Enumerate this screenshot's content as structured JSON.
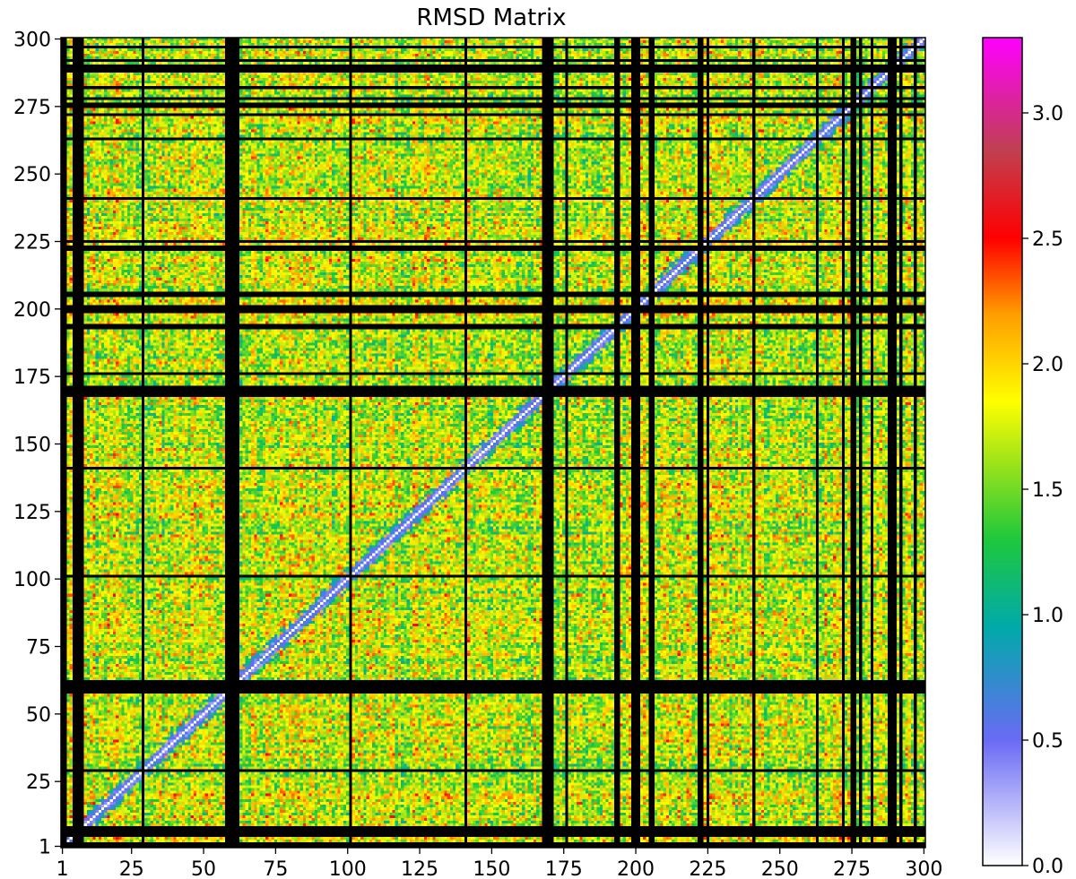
{
  "chart_data": {
    "type": "heatmap",
    "title": "RMSD Matrix",
    "xlabel": "",
    "ylabel": "",
    "x_range": [
      1,
      300
    ],
    "y_range": [
      1,
      300
    ],
    "x_ticks": [
      1,
      25,
      50,
      75,
      100,
      125,
      150,
      175,
      200,
      225,
      250,
      275,
      300
    ],
    "y_ticks": [
      1,
      25,
      50,
      75,
      100,
      125,
      150,
      175,
      200,
      225,
      250,
      275,
      300
    ],
    "colorbar": {
      "range": [
        0.0,
        3.3
      ],
      "ticks": [
        "0.0",
        "0.5",
        "1.0",
        "1.5",
        "2.0",
        "2.5",
        "3.0"
      ],
      "tick_values": [
        0.0,
        0.5,
        1.0,
        1.5,
        2.0,
        2.5,
        3.0
      ],
      "colormap_stops": [
        {
          "value": 0.0,
          "color": "#ffffff"
        },
        {
          "value": 0.5,
          "color": "#6a6af5"
        },
        {
          "value": 0.95,
          "color": "#00aaaa"
        },
        {
          "value": 1.3,
          "color": "#1ec83c"
        },
        {
          "value": 1.6,
          "color": "#9be31a"
        },
        {
          "value": 1.85,
          "color": "#ffff00"
        },
        {
          "value": 2.2,
          "color": "#ff9c00"
        },
        {
          "value": 2.5,
          "color": "#ff0000"
        },
        {
          "value": 2.85,
          "color": "#c04050"
        },
        {
          "value": 3.3,
          "color": "#ff00ff"
        }
      ]
    },
    "diagonal_value": 0.0,
    "off_diagonal_typical_range": [
      0.8,
      2.6
    ],
    "missing_rows_cols": [
      1,
      2,
      5,
      6,
      7,
      8,
      29,
      58,
      59,
      60,
      61,
      62,
      101,
      141,
      168,
      169,
      170,
      171,
      176,
      193,
      194,
      199,
      200,
      201,
      205,
      206,
      222,
      223,
      225,
      241,
      263,
      272,
      275,
      276,
      278,
      282,
      288,
      289,
      290,
      292,
      297
    ],
    "missing_color": "#000000",
    "grid": false
  }
}
